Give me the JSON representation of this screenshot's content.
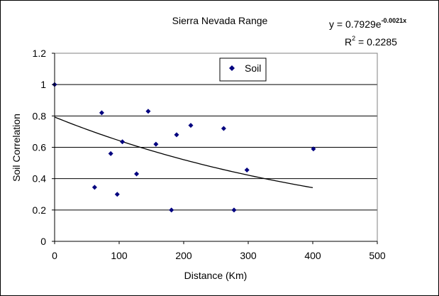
{
  "chart_data": {
    "type": "scatter",
    "title": "Sierra Nevada Range",
    "xlabel": "Distance (Km)",
    "ylabel": "Soil Correlation",
    "xlim": [
      0,
      500
    ],
    "ylim": [
      0,
      1.2
    ],
    "xticks": [
      0,
      100,
      200,
      300,
      400,
      500
    ],
    "yticks": [
      0,
      0.2,
      0.4,
      0.6,
      0.8,
      1,
      1.2
    ],
    "xtick_labels": [
      "0",
      "100",
      "200",
      "300",
      "400",
      "500"
    ],
    "ytick_labels": [
      "0",
      "0.2",
      "0.4",
      "0.6",
      "0.8",
      "1",
      "1.2"
    ],
    "grid": "horizontal",
    "legend": {
      "position": "top-center",
      "entries": [
        "Soil"
      ]
    },
    "series": [
      {
        "name": "Soil",
        "marker": "diamond",
        "color": "#00007F",
        "points": [
          [
            0,
            1.0
          ],
          [
            62,
            0.345
          ],
          [
            73,
            0.82
          ],
          [
            87,
            0.56
          ],
          [
            97,
            0.3
          ],
          [
            105,
            0.635
          ],
          [
            127,
            0.43
          ],
          [
            145,
            0.83
          ],
          [
            157,
            0.62
          ],
          [
            181,
            0.2
          ],
          [
            189,
            0.68
          ],
          [
            211,
            0.74
          ],
          [
            262,
            0.72
          ],
          [
            278,
            0.2
          ],
          [
            298,
            0.455
          ],
          [
            401,
            0.59
          ]
        ]
      }
    ],
    "trendline": {
      "type": "exponential",
      "a": 0.7929,
      "b": -0.0021,
      "x_range": [
        0,
        400
      ],
      "color": "#000000"
    },
    "annotations": {
      "equation_prefix": "y = 0.7929e",
      "equation_exponent": "-0.0021x",
      "r2_base": "R",
      "r2_power": "2",
      "r2_value": " = 0.2285"
    }
  }
}
